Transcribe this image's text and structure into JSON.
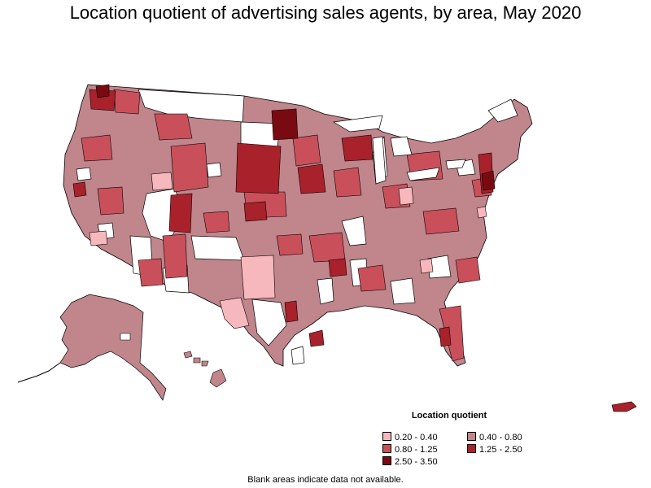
{
  "title": "Location quotient of advertising sales agents, by area, May 2020",
  "legend": {
    "title": "Location quotient",
    "items": [
      {
        "label": "0.20 - 0.40",
        "color": "#f7b8bd"
      },
      {
        "label": "0.40 - 0.80",
        "color": "#c0868c"
      },
      {
        "label": "0.80 - 1.25",
        "color": "#c9505a"
      },
      {
        "label": "1.25 - 2.50",
        "color": "#a8212b"
      },
      {
        "label": "2.50 - 3.50",
        "color": "#7a0a12"
      }
    ]
  },
  "note": "Blank areas indicate data not available.",
  "colors": {
    "border": "#000000",
    "no_data": "#ffffff"
  }
}
